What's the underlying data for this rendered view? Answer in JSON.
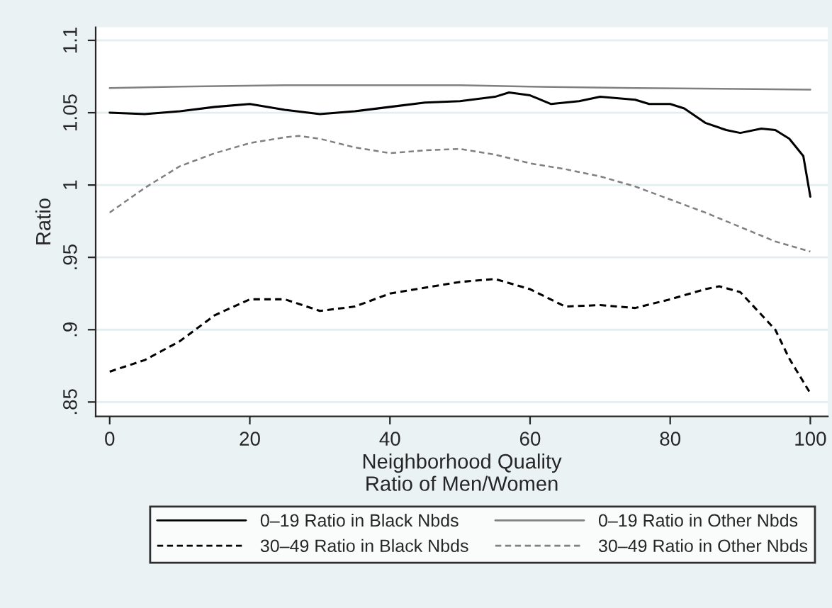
{
  "chart_data": {
    "type": "line",
    "title": null,
    "xlabel": "Neighborhood Quality\nRatio of Men/Women",
    "ylabel": "Ratio",
    "xlim": [
      -2,
      102.5
    ],
    "ylim": [
      0.84,
      1.109
    ],
    "xticks": [
      0,
      20,
      40,
      60,
      80,
      100
    ],
    "yticks": [
      {
        "value": 0.85,
        "label": ".85"
      },
      {
        "value": 0.9,
        "label": ".9"
      },
      {
        "value": 0.95,
        "label": ".95"
      },
      {
        "value": 1,
        "label": "1"
      },
      {
        "value": 1.05,
        "label": "1.05"
      },
      {
        "value": 1.1,
        "label": "1.1"
      }
    ],
    "grid": "y",
    "legend": "bottom",
    "series": [
      {
        "name": "0–19 Ratio in Black Nbds",
        "color": "#000000",
        "line_style": "solid",
        "x": [
          0,
          5,
          10,
          15,
          20,
          25,
          30,
          35,
          40,
          45,
          50,
          55,
          57,
          60,
          63,
          67,
          70,
          75,
          77,
          80,
          82,
          85,
          88,
          90,
          93,
          95,
          97,
          99,
          100
        ],
        "values": [
          1.05,
          1.049,
          1.051,
          1.054,
          1.056,
          1.052,
          1.049,
          1.051,
          1.054,
          1.057,
          1.058,
          1.061,
          1.064,
          1.062,
          1.056,
          1.058,
          1.061,
          1.059,
          1.056,
          1.056,
          1.053,
          1.043,
          1.038,
          1.036,
          1.039,
          1.038,
          1.032,
          1.02,
          0.992
        ]
      },
      {
        "name": "0–19 Ratio in Other Nbds",
        "color": "#808080",
        "line_style": "solid",
        "x": [
          0,
          10,
          25,
          50,
          60,
          75,
          100
        ],
        "values": [
          1.067,
          1.068,
          1.069,
          1.069,
          1.068,
          1.067,
          1.066
        ]
      },
      {
        "name": "30–49 Ratio in Black Nbds",
        "color": "#000000",
        "line_style": "dashed",
        "x": [
          0,
          5,
          10,
          15,
          20,
          25,
          30,
          35,
          40,
          45,
          50,
          55,
          60,
          65,
          70,
          75,
          80,
          85,
          87,
          90,
          95,
          97,
          100
        ],
        "values": [
          0.871,
          0.879,
          0.892,
          0.91,
          0.921,
          0.921,
          0.913,
          0.916,
          0.925,
          0.929,
          0.933,
          0.935,
          0.928,
          0.916,
          0.917,
          0.915,
          0.921,
          0.928,
          0.93,
          0.926,
          0.9,
          0.88,
          0.856
        ]
      },
      {
        "name": "30–49 Ratio in Other Nbds",
        "color": "#808080",
        "line_style": "dashed",
        "x": [
          0,
          5,
          10,
          15,
          20,
          25,
          27,
          30,
          35,
          40,
          45,
          50,
          55,
          60,
          65,
          70,
          75,
          80,
          85,
          90,
          95,
          100
        ],
        "values": [
          0.981,
          0.998,
          1.013,
          1.022,
          1.029,
          1.033,
          1.034,
          1.032,
          1.026,
          1.022,
          1.024,
          1.025,
          1.021,
          1.015,
          1.011,
          1.006,
          0.999,
          0.99,
          0.981,
          0.971,
          0.961,
          0.954
        ]
      }
    ]
  }
}
